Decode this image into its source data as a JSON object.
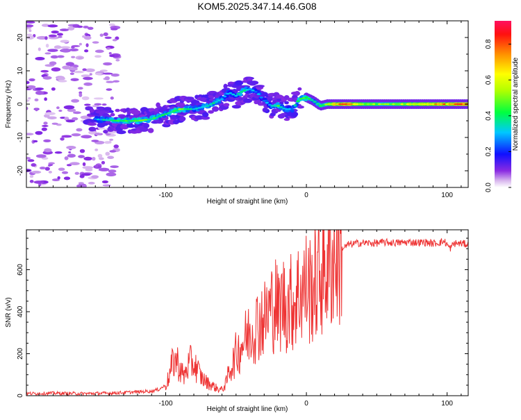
{
  "chart_data": [
    {
      "type": "heatmap",
      "title": "KOM5.2025.347.14.46.G08",
      "xlabel": "Height of straight line (km)",
      "ylabel": "Frequency (Hz)",
      "xlim": [
        -199,
        115
      ],
      "ylim": [
        -25,
        25
      ],
      "x_ticks": [
        -100,
        0,
        100
      ],
      "y_ticks": [
        -20,
        -10,
        0,
        10,
        20
      ],
      "colorbar": {
        "label": "Normalized spectral amplitude",
        "range": [
          0,
          0.93
        ],
        "ticks": [
          0.0,
          0.2,
          0.4,
          0.6,
          0.8
        ]
      },
      "ridge": {
        "x": [
          -150,
          -135,
          -120,
          -110,
          -100,
          -90,
          -80,
          -70,
          -60,
          -55,
          -50,
          -45,
          -40,
          -35,
          -30,
          -25,
          -20,
          -15,
          -10,
          -5,
          0,
          5,
          10,
          15,
          20,
          30,
          40,
          50,
          60,
          70,
          80,
          90,
          100,
          110
        ],
        "y": [
          -4.5,
          -5,
          -5,
          -4.5,
          -3,
          -1.5,
          -1.5,
          -0.5,
          1.5,
          3.5,
          2.5,
          4,
          4.5,
          3.5,
          1,
          -0.5,
          -0.5,
          -1.5,
          -1.5,
          1.5,
          2,
          1,
          -0.5,
          0,
          0,
          0,
          0,
          0,
          0,
          0,
          0,
          0,
          0,
          0
        ],
        "amplitude": [
          0.3,
          0.45,
          0.5,
          0.45,
          0.4,
          0.5,
          0.35,
          0.4,
          0.35,
          0.3,
          0.35,
          0.4,
          0.35,
          0.3,
          0.3,
          0.35,
          0.45,
          0.35,
          0.3,
          0.45,
          0.5,
          0.35,
          0.45,
          0.55,
          0.75,
          0.85,
          0.6,
          0.55,
          0.55,
          0.6,
          0.7,
          0.75,
          0.8,
          0.9
        ]
      }
    },
    {
      "type": "line",
      "title": "",
      "xlabel": "Height of straight line (km)",
      "ylabel": "SNR (v/v)",
      "xlim": [
        -199,
        115
      ],
      "ylim": [
        0,
        790
      ],
      "x_ticks": [
        -100,
        0,
        100
      ],
      "y_ticks": [
        0,
        200,
        400,
        600
      ],
      "color": "#ee3333",
      "series": [
        {
          "name": "SNR",
          "x": [
            -199,
            -180,
            -160,
            -140,
            -120,
            -110,
            -105,
            -100,
            -97,
            -95,
            -92,
            -90,
            -87,
            -85,
            -82,
            -80,
            -77,
            -75,
            -72,
            -70,
            -67,
            -65,
            -62,
            -60,
            -57,
            -55,
            -52,
            -50,
            -47,
            -45,
            -42,
            -40,
            -37,
            -35,
            -32,
            -30,
            -27,
            -25,
            -22,
            -20,
            -17,
            -15,
            -12,
            -10,
            -7,
            -5,
            -2,
            0,
            3,
            5,
            8,
            10,
            13,
            15,
            18,
            20,
            23,
            25,
            28,
            30,
            33,
            35,
            40,
            45,
            50,
            55,
            60,
            65,
            70,
            75,
            80,
            85,
            90,
            95,
            98,
            100,
            102,
            105,
            110,
            115
          ],
          "y": [
            10,
            12,
            10,
            12,
            18,
            22,
            30,
            50,
            100,
            160,
            170,
            130,
            90,
            130,
            160,
            150,
            120,
            90,
            70,
            60,
            50,
            40,
            30,
            30,
            60,
            120,
            160,
            200,
            230,
            260,
            280,
            310,
            330,
            340,
            370,
            360,
            400,
            420,
            450,
            390,
            460,
            420,
            450,
            440,
            470,
            500,
            510,
            520,
            510,
            530,
            540,
            590,
            610,
            620,
            650,
            670,
            690,
            700,
            710,
            720,
            722,
            725,
            728,
            726,
            727,
            730,
            729,
            728,
            730,
            731,
            729,
            730,
            725,
            730,
            735,
            720,
            700,
            725,
            725,
            720
          ]
        }
      ]
    }
  ]
}
